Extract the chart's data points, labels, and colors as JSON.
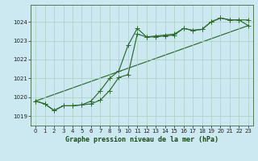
{
  "title": "Graphe pression niveau de la mer (hPa)",
  "background_color": "#cce8f0",
  "plot_bg_color": "#cce8f0",
  "grid_color": "#aacfbf",
  "line_color": "#2d6b2d",
  "xlim": [
    -0.5,
    23.5
  ],
  "ylim": [
    1018.5,
    1024.9
  ],
  "yticks": [
    1019,
    1020,
    1021,
    1022,
    1023,
    1024
  ],
  "xticks": [
    0,
    1,
    2,
    3,
    4,
    5,
    6,
    7,
    8,
    9,
    10,
    11,
    12,
    13,
    14,
    15,
    16,
    17,
    18,
    19,
    20,
    21,
    22,
    23
  ],
  "line1_x": [
    0,
    1,
    2,
    3,
    4,
    5,
    6,
    7,
    8,
    9,
    10,
    11,
    12,
    13,
    14,
    15,
    16,
    17,
    18,
    19,
    20,
    21,
    22,
    23
  ],
  "line1_y": [
    1019.8,
    1019.65,
    1019.3,
    1019.55,
    1019.55,
    1019.6,
    1019.65,
    1019.85,
    1020.35,
    1021.05,
    1021.2,
    1023.35,
    1023.2,
    1023.25,
    1023.3,
    1023.35,
    1023.65,
    1023.55,
    1023.6,
    1024.0,
    1024.2,
    1024.1,
    1024.1,
    1024.1
  ],
  "line2_x": [
    0,
    1,
    2,
    3,
    4,
    5,
    6,
    7,
    8,
    9,
    10,
    11,
    12,
    13,
    14,
    15,
    16,
    17,
    18,
    19,
    20,
    21,
    22,
    23
  ],
  "line2_y": [
    1019.8,
    1019.65,
    1019.3,
    1019.55,
    1019.55,
    1019.6,
    1019.8,
    1020.35,
    1021.0,
    1021.4,
    1022.75,
    1023.65,
    1023.2,
    1023.2,
    1023.25,
    1023.3,
    1023.65,
    1023.55,
    1023.6,
    1024.0,
    1024.2,
    1024.1,
    1024.1,
    1023.8
  ],
  "line3_x": [
    0,
    23
  ],
  "line3_y": [
    1019.8,
    1023.8
  ]
}
